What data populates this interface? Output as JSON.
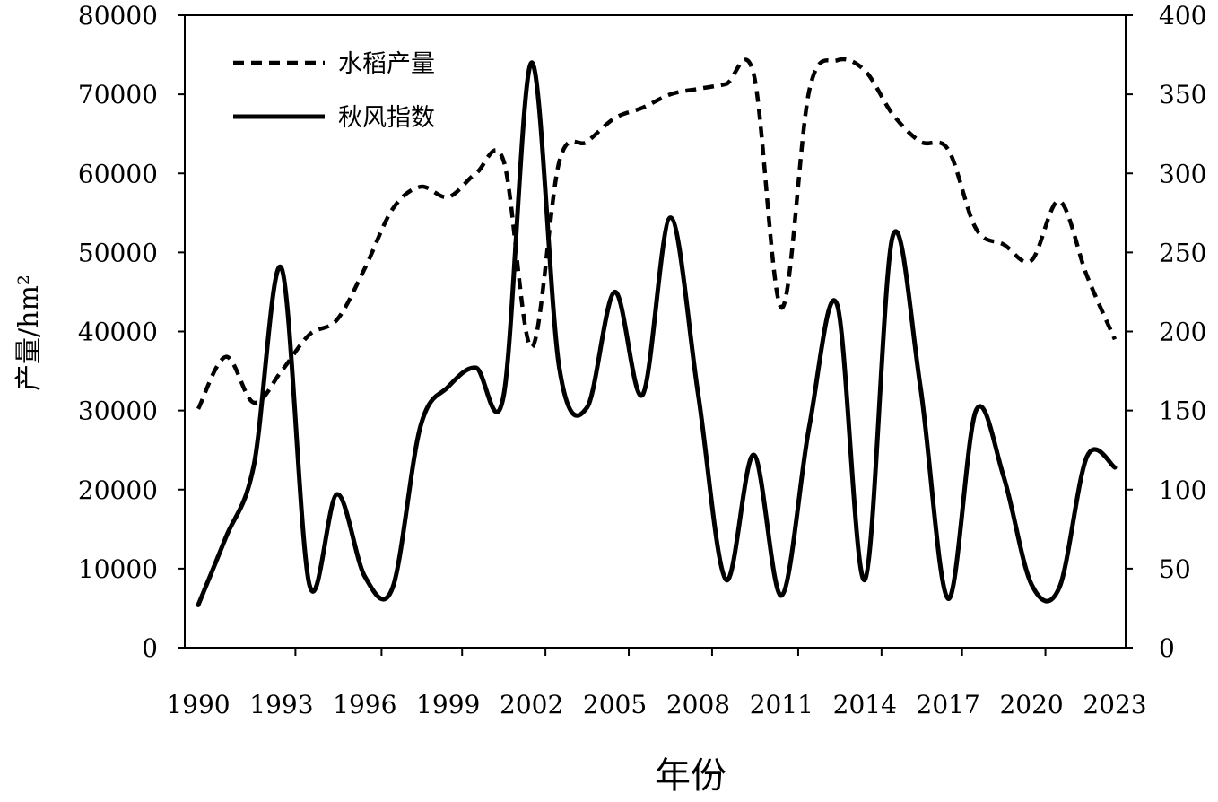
{
  "chart_data": {
    "type": "line",
    "xlabel": "年份",
    "ylabel_left": "产量/hm²",
    "ylabel_right": "",
    "x_ticks": [
      1990,
      1993,
      1996,
      1999,
      2002,
      2005,
      2008,
      2011,
      2014,
      2017,
      2020,
      2023
    ],
    "ylim_left": [
      0,
      80000
    ],
    "yticks_left": [
      0,
      10000,
      20000,
      30000,
      40000,
      50000,
      60000,
      70000,
      80000
    ],
    "ylim_right": [
      0,
      400
    ],
    "yticks_right": [
      0,
      50,
      100,
      150,
      200,
      250,
      300,
      350,
      400
    ],
    "grid": false,
    "legend_position": "top-left",
    "x": [
      1990,
      1991,
      1992,
      1993,
      1994,
      1995,
      1996,
      1997,
      1998,
      1999,
      2000,
      2001,
      2002,
      2003,
      2004,
      2005,
      2006,
      2007,
      2008,
      2009,
      2010,
      2011,
      2012,
      2013,
      2014,
      2015,
      2016,
      2017,
      2018,
      2019,
      2020,
      2021,
      2022,
      2023
    ],
    "series": [
      {
        "name": "水稻产量",
        "axis": "left",
        "style": "dashed",
        "color": "#000000",
        "values": [
          30200,
          36800,
          31000,
          35000,
          39600,
          41500,
          48000,
          55500,
          58300,
          57000,
          60000,
          61500,
          38000,
          61500,
          64000,
          67000,
          68300,
          70000,
          70700,
          71300,
          72500,
          43000,
          70500,
          74300,
          73000,
          67500,
          64000,
          63000,
          53000,
          51000,
          49000,
          56500,
          47000,
          39000
        ]
      },
      {
        "name": "秋风指数",
        "axis": "right",
        "style": "solid",
        "color": "#000000",
        "values": [
          27,
          70,
          115,
          240,
          40,
          97,
          45,
          38,
          140,
          165,
          177,
          160,
          370,
          177,
          152,
          225,
          160,
          272,
          160,
          43,
          122,
          33,
          140,
          217,
          43,
          260,
          165,
          31,
          150,
          108,
          40,
          38,
          121,
          114
        ]
      }
    ]
  }
}
